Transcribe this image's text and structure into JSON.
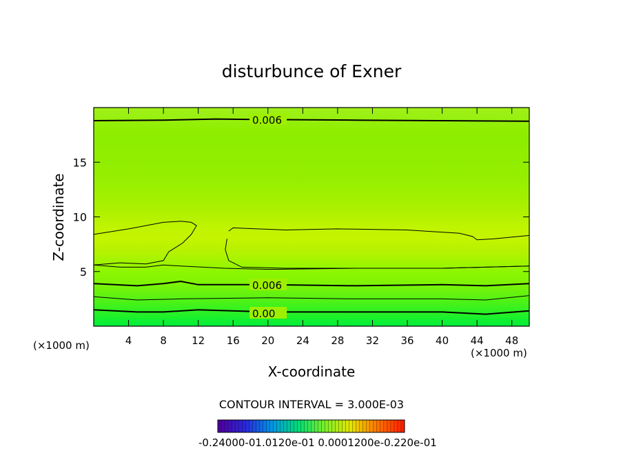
{
  "chart_data": {
    "type": "contour",
    "title": "disturbunce of Exner",
    "xlabel": "X-coordinate",
    "ylabel": "Z-coordinate",
    "x_unit_left": "(×1000 m)",
    "x_unit_right": "(×1000 m)",
    "xlim": [
      0,
      50
    ],
    "ylim": [
      0,
      20
    ],
    "x_ticks": [
      "4",
      "8",
      "12",
      "16",
      "20",
      "24",
      "28",
      "32",
      "36",
      "40",
      "44",
      "48"
    ],
    "x_tick_values": [
      4,
      8,
      12,
      16,
      20,
      24,
      28,
      32,
      36,
      40,
      44,
      48
    ],
    "y_ticks": [
      "5",
      "10",
      "15"
    ],
    "y_tick_values": [
      5,
      10,
      15
    ],
    "contour_interval_text": "CONTOUR INTERVAL = 3.000E-03",
    "contours": [
      {
        "level": 0.006,
        "label": "0.006",
        "bold": true,
        "label_x": 18.2,
        "label_y": 18.9,
        "points": [
          [
            0,
            18.8
          ],
          [
            8,
            18.85
          ],
          [
            14,
            18.95
          ],
          [
            20,
            18.9
          ],
          [
            30,
            18.85
          ],
          [
            40,
            18.8
          ],
          [
            50,
            18.75
          ]
        ]
      },
      {
        "level": 0.009,
        "label": "",
        "bold": false,
        "label_x": null,
        "label_y": null,
        "points": [
          [
            0,
            5.6
          ],
          [
            3,
            5.4
          ],
          [
            6,
            5.4
          ],
          [
            8,
            5.6
          ],
          [
            10,
            5.5
          ],
          [
            15,
            5.3
          ],
          [
            20,
            5.2
          ],
          [
            30,
            5.3
          ],
          [
            40,
            5.3
          ],
          [
            50,
            5.5
          ]
        ]
      },
      {
        "level": 0.006,
        "label": "0.006",
        "bold": true,
        "label_x": 18.2,
        "label_y": 3.8,
        "points": [
          [
            0,
            3.9
          ],
          [
            5,
            3.7
          ],
          [
            8,
            3.9
          ],
          [
            10,
            4.1
          ],
          [
            12,
            3.8
          ],
          [
            20,
            3.8
          ],
          [
            30,
            3.7
          ],
          [
            40,
            3.8
          ],
          [
            45,
            3.7
          ],
          [
            50,
            3.9
          ]
        ]
      },
      {
        "level": 0.003,
        "label": "",
        "bold": false,
        "label_x": null,
        "label_y": null,
        "points": [
          [
            0,
            2.7
          ],
          [
            5,
            2.4
          ],
          [
            10,
            2.5
          ],
          [
            20,
            2.6
          ],
          [
            30,
            2.5
          ],
          [
            40,
            2.5
          ],
          [
            45,
            2.4
          ],
          [
            50,
            2.8
          ]
        ]
      },
      {
        "level": 0.0,
        "label": "0.00",
        "bold": true,
        "label_x": 18.2,
        "label_y": 1.2,
        "points": [
          [
            0,
            1.5
          ],
          [
            5,
            1.3
          ],
          [
            8,
            1.3
          ],
          [
            12,
            1.5
          ],
          [
            20,
            1.3
          ],
          [
            30,
            1.3
          ],
          [
            40,
            1.3
          ],
          [
            45,
            1.1
          ],
          [
            50,
            1.4
          ]
        ]
      }
    ],
    "closed_contours": [
      {
        "level": 0.009,
        "points": [
          [
            0,
            8.4
          ],
          [
            4,
            8.9
          ],
          [
            8,
            9.5
          ],
          [
            10,
            9.6
          ],
          [
            11.2,
            9.5
          ],
          [
            11.8,
            9.2
          ],
          [
            11.2,
            8.4
          ],
          [
            10.2,
            7.6
          ],
          [
            8.6,
            6.8
          ],
          [
            8,
            6.0
          ],
          [
            6,
            5.7
          ],
          [
            3,
            5.8
          ],
          [
            0,
            5.6
          ]
        ]
      },
      {
        "level": 0.009,
        "points": [
          [
            15.5,
            8.7
          ],
          [
            16,
            9.0
          ],
          [
            22,
            8.8
          ],
          [
            28,
            8.9
          ],
          [
            36,
            8.8
          ],
          [
            42,
            8.5
          ],
          [
            43.5,
            8.2
          ],
          [
            44,
            7.9
          ],
          [
            46,
            8.0
          ],
          [
            50,
            8.3
          ],
          [
            50,
            5.5
          ],
          [
            40,
            5.3
          ],
          [
            30,
            5.3
          ],
          [
            22,
            5.3
          ],
          [
            17,
            5.4
          ],
          [
            15.5,
            6.0
          ],
          [
            15.1,
            7.0
          ],
          [
            15.3,
            8.0
          ]
        ]
      }
    ],
    "color_field": {
      "rows_z": [
        0,
        1,
        2,
        3,
        4,
        5,
        6,
        7,
        8,
        9,
        10,
        11,
        12,
        13,
        14,
        15,
        16,
        17,
        18,
        19,
        20
      ],
      "colors": [
        "#00ee3a",
        "#22f028",
        "#44f21a",
        "#66f20e",
        "#80f406",
        "#8ef600",
        "#a4f400",
        "#b8f200",
        "#c4f400",
        "#c0f400",
        "#b4f200",
        "#a8f000",
        "#a0f000",
        "#98f000",
        "#94ee00",
        "#92ee00",
        "#90ee00",
        "#8eee00",
        "#90ee00",
        "#98f010",
        "#a0f018"
      ]
    },
    "colorbar": {
      "tick_label_text": "-0.24000-01.0120e-01 0.0001200e-0.220e-01",
      "from_color": "#5000a0",
      "to_color": "#ff2000"
    }
  }
}
